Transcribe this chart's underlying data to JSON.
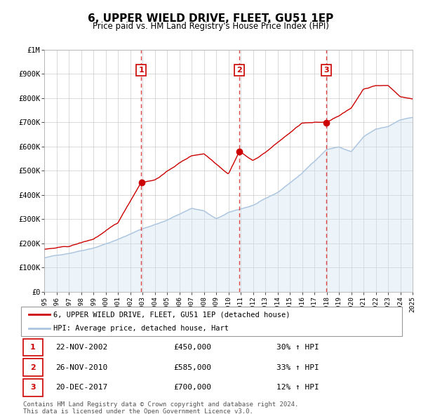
{
  "title": "6, UPPER WIELD DRIVE, FLEET, GU51 1EP",
  "subtitle": "Price paid vs. HM Land Registry's House Price Index (HPI)",
  "xlim": [
    1995,
    2025
  ],
  "ylim": [
    0,
    1000000
  ],
  "yticks": [
    0,
    100000,
    200000,
    300000,
    400000,
    500000,
    600000,
    700000,
    800000,
    900000,
    1000000
  ],
  "ytick_labels": [
    "£0",
    "£100K",
    "£200K",
    "£300K",
    "£400K",
    "£500K",
    "£600K",
    "£700K",
    "£800K",
    "£900K",
    "£1M"
  ],
  "sale_color": "#cc0000",
  "hpi_color": "#aac4e0",
  "hpi_fill_color": "#cce0f0",
  "sale_label": "6, UPPER WIELD DRIVE, FLEET, GU51 1EP (detached house)",
  "hpi_label": "HPI: Average price, detached house, Hart",
  "purchases": [
    {
      "num": 1,
      "date_label": "22-NOV-2002",
      "x": 2002.9,
      "price": 450000,
      "pct": "30%",
      "vline_x": 2002.9
    },
    {
      "num": 2,
      "date_label": "26-NOV-2010",
      "x": 2010.9,
      "price": 585000,
      "pct": "33%",
      "vline_x": 2010.9
    },
    {
      "num": 3,
      "date_label": "20-DEC-2017",
      "x": 2017.97,
      "price": 700000,
      "pct": "12%",
      "vline_x": 2017.97
    }
  ],
  "footer_line1": "Contains HM Land Registry data © Crown copyright and database right 2024.",
  "footer_line2": "This data is licensed under the Open Government Licence v3.0."
}
